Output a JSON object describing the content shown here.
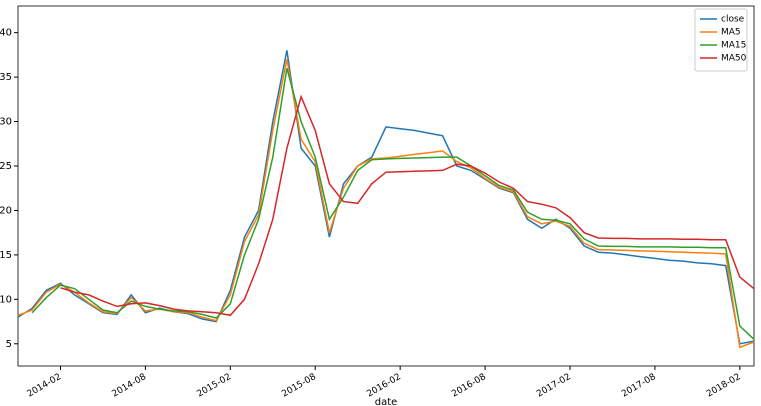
{
  "chart_data": {
    "type": "line",
    "x_label": "date",
    "x": [
      "2013-11",
      "2013-12",
      "2014-01",
      "2014-02",
      "2014-03",
      "2014-04",
      "2014-05",
      "2014-06",
      "2014-07",
      "2014-08",
      "2014-09",
      "2014-10",
      "2014-11",
      "2014-12",
      "2015-01",
      "2015-02",
      "2015-03",
      "2015-04",
      "2015-05",
      "2015-06",
      "2015-07",
      "2015-08",
      "2015-09",
      "2015-10",
      "2015-11",
      "2015-12",
      "2016-01",
      "2016-02",
      "2016-03",
      "2016-04",
      "2016-05",
      "2016-06",
      "2016-07",
      "2016-08",
      "2016-09",
      "2016-10",
      "2016-11",
      "2016-12",
      "2017-01",
      "2017-02",
      "2017-03",
      "2017-04",
      "2017-05",
      "2017-06",
      "2017-07",
      "2017-08",
      "2017-09",
      "2017-10",
      "2017-11",
      "2017-12",
      "2018-01",
      "2018-02",
      "2018-03"
    ],
    "series": [
      {
        "name": "close",
        "color": "#1f77b4",
        "values": [
          8,
          9,
          11,
          11.8,
          10.5,
          9.5,
          8.5,
          8.3,
          10.5,
          8.5,
          9,
          8.6,
          8.4,
          7.8,
          7.5,
          11,
          17,
          20,
          30,
          38,
          27,
          25,
          17,
          23,
          25,
          26,
          29.4,
          29.2,
          29,
          28.7,
          28.4,
          25,
          24.5,
          23.5,
          22.5,
          22,
          19,
          18,
          19,
          18,
          16,
          15.3,
          15.2,
          15,
          14.8,
          14.6,
          14.4,
          14.3,
          14.1,
          14,
          13.8,
          5,
          5.3
        ]
      },
      {
        "name": "MA5",
        "color": "#ff7f0e",
        "values": [
          8.2,
          8.8,
          10.8,
          11.7,
          10.8,
          9.6,
          8.6,
          8.4,
          10.2,
          8.7,
          8.9,
          8.6,
          8.5,
          8.0,
          7.6,
          10.5,
          16.5,
          19.5,
          29,
          37,
          28,
          25.5,
          17.5,
          22.5,
          25,
          25.8,
          25.9,
          26.1,
          26.3,
          26.5,
          26.7,
          25.5,
          24.8,
          23.6,
          22.6,
          22.1,
          19.3,
          18.5,
          18.8,
          18.2,
          16.3,
          15.6,
          15.55,
          15.5,
          15.45,
          15.4,
          15.35,
          15.3,
          15.25,
          15.2,
          15.1,
          4.6,
          5.2
        ]
      },
      {
        "name": "MA15",
        "color": "#2ca02c",
        "values": [
          null,
          8.5,
          10.2,
          11.6,
          11.2,
          10,
          8.8,
          8.5,
          9.8,
          9.2,
          8.9,
          8.7,
          8.6,
          8.3,
          7.9,
          9.5,
          15,
          19,
          26,
          36,
          30,
          26,
          19,
          21.5,
          24.5,
          25.7,
          25.8,
          25.85,
          25.9,
          25.95,
          26,
          26,
          25,
          23.9,
          22.8,
          22.3,
          19.8,
          19,
          18.9,
          18.5,
          16.8,
          16,
          15.95,
          15.95,
          15.9,
          15.9,
          15.9,
          15.85,
          15.85,
          15.8,
          15.8,
          7,
          5.5
        ]
      },
      {
        "name": "MA50",
        "color": "#d62728",
        "values": [
          null,
          null,
          null,
          11.3,
          10.8,
          10.5,
          9.8,
          9.2,
          9.5,
          9.6,
          9.3,
          8.9,
          8.7,
          8.6,
          8.5,
          8.2,
          10,
          14,
          19,
          27,
          32.8,
          29,
          23,
          21,
          20.8,
          23,
          24.3,
          24.35,
          24.4,
          24.45,
          24.5,
          25.2,
          25,
          24.2,
          23.2,
          22.5,
          21,
          20.7,
          20.3,
          19.2,
          17.5,
          16.9,
          16.85,
          16.85,
          16.8,
          16.8,
          16.8,
          16.75,
          16.75,
          16.7,
          16.7,
          12.5,
          11.2
        ]
      }
    ],
    "xlim": [
      "2013-11",
      "2018-03"
    ],
    "xticks": [
      "2014-02",
      "2014-08",
      "2015-02",
      "2015-08",
      "2016-02",
      "2016-08",
      "2017-02",
      "2017-08",
      "2018-02"
    ],
    "ylim": [
      2.5,
      43
    ],
    "yticks": [
      5,
      10,
      15,
      20,
      25,
      30,
      35,
      40
    ],
    "legend": "upper right"
  }
}
